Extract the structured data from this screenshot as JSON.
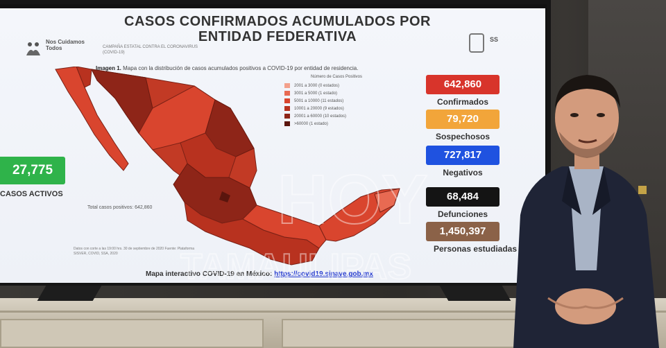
{
  "slide": {
    "title_line1": "CASOS CONFIRMADOS ACUMULADOS POR",
    "title_line2": "ENTIDAD FEDERATIVA",
    "logo_text": "Nos Cuidamos Todos",
    "campaign_text": "CAMPAÑA ESTATAL CONTRA EL CORONAVIRUS (COVID-19)",
    "ss_text": "SS",
    "caption_bold": "Imagen 1.",
    "caption_text": "Mapa con la distribución de casos acumulados positivos a COVID-19 por entidad de residencia.",
    "legend_title": "Número de Casos Positivos",
    "legend": [
      {
        "label": "2001 a 3000 (0 estados)",
        "color": "#f3a08c"
      },
      {
        "label": "3001 a 5000 (1 estado)",
        "color": "#e86a52"
      },
      {
        "label": "5001 a 10000 (11 estados)",
        "color": "#d9452e"
      },
      {
        "label": "10001 a 20000 (9 estados)",
        "color": "#b8321f"
      },
      {
        "label": "20001 a 60000 (10 estados)",
        "color": "#8e2518"
      },
      {
        "label": ">60000 (1 estado)",
        "color": "#5a150d"
      }
    ],
    "total_positivos": "Total casos positivos: 642,860",
    "fine_print": "Datos con corte a las 19:00 hrs. 30 de septiembre de 2020 Fuente: Plataforma SISVER, COVID, SSA, 2020",
    "map_link_label": "Mapa interactivo COVID-19 en México:",
    "map_link_url": "https://covid19.sinave.gob.mx",
    "activos_value": "27,775",
    "activos_label": "CASOS ACTIVOS",
    "stats": [
      {
        "value": "642,860",
        "label": "Confirmados",
        "color": "#d8342b"
      },
      {
        "value": "79,720",
        "label": "Sospechosos",
        "color": "#f2a53a"
      },
      {
        "value": "727,817",
        "label": "Negativos",
        "color": "#1f52e0"
      },
      {
        "value": "68,484",
        "label": "Defunciones",
        "color": "#141414"
      },
      {
        "value": "1,450,397",
        "label": "Personas estudiadas",
        "color": "#8b6248"
      }
    ]
  },
  "watermark": {
    "line1": "HOY",
    "line2": "TAMAULIPAS"
  }
}
